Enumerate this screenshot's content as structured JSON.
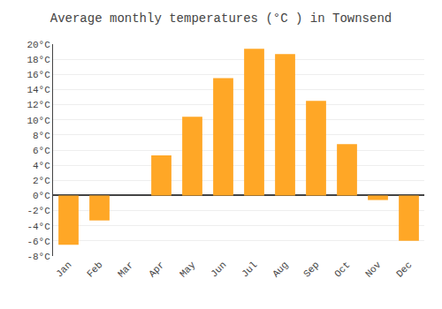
{
  "chart_data": {
    "type": "bar",
    "title": "Average monthly temperatures (°C ) in Townsend",
    "categories": [
      "Jan",
      "Feb",
      "Mar",
      "Apr",
      "May",
      "Jun",
      "Jul",
      "Aug",
      "Sep",
      "Oct",
      "Nov",
      "Dec"
    ],
    "values": [
      -6.5,
      -3.3,
      0.0,
      5.3,
      10.4,
      15.5,
      19.4,
      18.7,
      12.5,
      6.8,
      -0.6,
      -6.0
    ],
    "color": "#FFA726",
    "ylim": [
      -8,
      20
    ],
    "yticks": [
      {
        "value": -8,
        "label": "-8°C"
      },
      {
        "value": -6,
        "label": "-6°C"
      },
      {
        "value": -4,
        "label": "-4°C"
      },
      {
        "value": -2,
        "label": "-2°C"
      },
      {
        "value": 0,
        "label": "0°C"
      },
      {
        "value": 2,
        "label": "2°C"
      },
      {
        "value": 4,
        "label": "4°C"
      },
      {
        "value": 6,
        "label": "6°C"
      },
      {
        "value": 8,
        "label": "8°C"
      },
      {
        "value": 10,
        "label": "10°C"
      },
      {
        "value": 12,
        "label": "12°C"
      },
      {
        "value": 14,
        "label": "14°C"
      },
      {
        "value": 16,
        "label": "16°C"
      },
      {
        "value": 18,
        "label": "18°C"
      },
      {
        "value": 20,
        "label": "20°C"
      }
    ],
    "grid": true
  }
}
